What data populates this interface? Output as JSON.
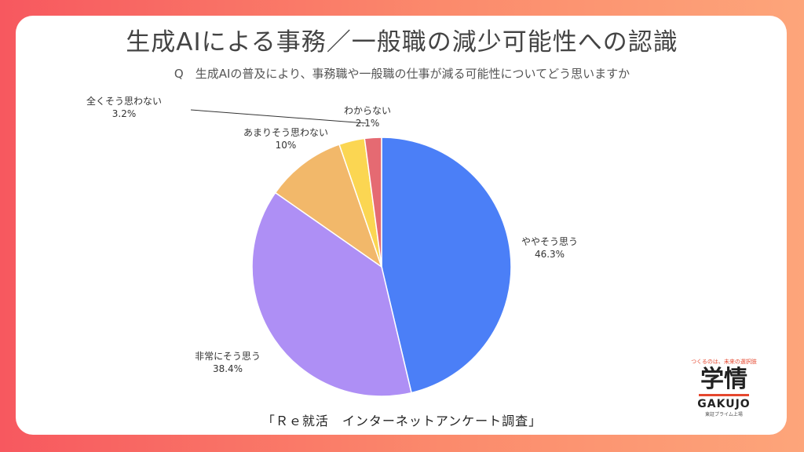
{
  "title": "生成AIによる事務／一般職の減少可能性への認識",
  "subtitle": "Q　生成AIの普及により、事務職や一般職の仕事が減る可能性についてどう思いますか",
  "source": "「Ｒｅ就活　インターネットアンケート調査」",
  "logo": {
    "tagline": "つくるのは、未来の選択肢",
    "main": "学情",
    "en": "GAKUJO",
    "sub": "東証プライム上場"
  },
  "chart_data": {
    "type": "pie",
    "slices": [
      {
        "label": "ややそう思う",
        "value": 46.3,
        "value_text": "46.3%",
        "color": "#4b7ff7"
      },
      {
        "label": "非常にそう思う",
        "value": 38.4,
        "value_text": "38.4%",
        "color": "#ae8ff5"
      },
      {
        "label": "あまりそう思わない",
        "value": 10,
        "value_text": "10%",
        "color": "#f2b86a"
      },
      {
        "label": "全くそう思わない",
        "value": 3.2,
        "value_text": "3.2%",
        "color": "#fbd652"
      },
      {
        "label": "わからない",
        "value": 2.1,
        "value_text": "2.1%",
        "color": "#e56a72"
      }
    ]
  }
}
